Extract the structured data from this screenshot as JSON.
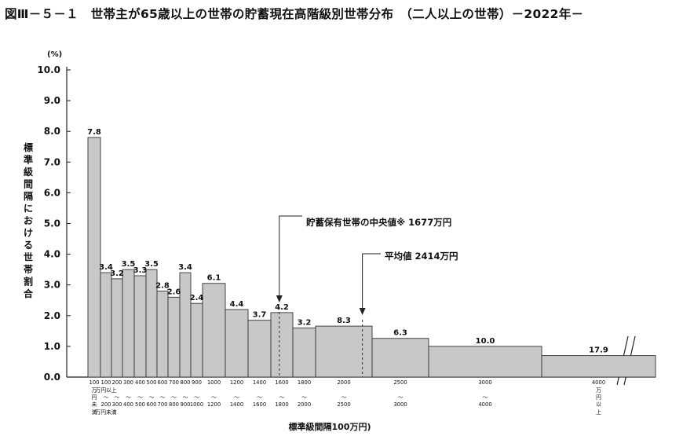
{
  "title": "図Ⅲ－５－１　世帯主が65歳以上の世帯の貯蓄現在高階級別世帯分布　（二人以上の世帯）－2022年－",
  "chart_data": {
    "type": "bar",
    "title": "図Ⅲ－５－１　世帯主が65歳以上の世帯の貯蓄現在高階級別世帯分布　（二人以上の世帯）－2022年－",
    "ylabel": "標準級間隔における世帯割合",
    "yunit": "(%)",
    "xlabel": "標準級間隔100万円)",
    "ylim": [
      0,
      10
    ],
    "yticks": [
      "0.0",
      "1.0",
      "2.0",
      "3.0",
      "4.0",
      "5.0",
      "6.0",
      "7.0",
      "8.0",
      "9.0",
      "10.0"
    ],
    "grid": false,
    "bars": [
      {
        "from": 0,
        "to": 100,
        "value": 7.8,
        "label": "7.8",
        "category": [
          "100",
          "万",
          "円",
          "未",
          "満"
        ]
      },
      {
        "from": 100,
        "to": 200,
        "value": 3.4,
        "label": "3.4",
        "category": [
          "100",
          "万円以上",
          "〜",
          "200",
          "万円未満"
        ]
      },
      {
        "from": 200,
        "to": 300,
        "value": 3.2,
        "label": "3.2",
        "category": [
          "200",
          "",
          "〜",
          "300",
          ""
        ]
      },
      {
        "from": 300,
        "to": 400,
        "value": 3.5,
        "label": "3.5",
        "category": [
          "300",
          "",
          "〜",
          "400",
          ""
        ]
      },
      {
        "from": 400,
        "to": 500,
        "value": 3.3,
        "label": "3.3",
        "category": [
          "400",
          "",
          "〜",
          "500",
          ""
        ]
      },
      {
        "from": 500,
        "to": 600,
        "value": 3.5,
        "label": "3.5",
        "category": [
          "500",
          "",
          "〜",
          "600",
          ""
        ]
      },
      {
        "from": 600,
        "to": 700,
        "value": 2.8,
        "label": "2.8",
        "category": [
          "600",
          "",
          "〜",
          "700",
          ""
        ]
      },
      {
        "from": 700,
        "to": 800,
        "value": 2.6,
        "label": "2.6",
        "category": [
          "700",
          "",
          "〜",
          "800",
          ""
        ]
      },
      {
        "from": 800,
        "to": 900,
        "value": 3.4,
        "label": "3.4",
        "category": [
          "800",
          "",
          "〜",
          "900",
          ""
        ]
      },
      {
        "from": 900,
        "to": 1000,
        "value": 2.4,
        "label": "2.4",
        "category": [
          "900",
          "",
          "〜",
          "1000",
          ""
        ]
      },
      {
        "from": 1000,
        "to": 1200,
        "value": 3.05,
        "label": "6.1",
        "category": [
          "1000",
          "",
          "〜",
          "1200",
          ""
        ]
      },
      {
        "from": 1200,
        "to": 1400,
        "value": 2.2,
        "label": "4.4",
        "category": [
          "1200",
          "",
          "〜",
          "1400",
          ""
        ]
      },
      {
        "from": 1400,
        "to": 1600,
        "value": 1.85,
        "label": "3.7",
        "category": [
          "1400",
          "",
          "〜",
          "1600",
          ""
        ]
      },
      {
        "from": 1600,
        "to": 1800,
        "value": 2.1,
        "label": "4.2",
        "category": [
          "1600",
          "",
          "〜",
          "1800",
          ""
        ]
      },
      {
        "from": 1800,
        "to": 2000,
        "value": 1.6,
        "label": "3.2",
        "category": [
          "1800",
          "",
          "〜",
          "2000",
          ""
        ]
      },
      {
        "from": 2000,
        "to": 2500,
        "value": 1.66,
        "label": "8.3",
        "category": [
          "2000",
          "",
          "〜",
          "2500",
          ""
        ]
      },
      {
        "from": 2500,
        "to": 3000,
        "value": 1.26,
        "label": "6.3",
        "category": [
          "2500",
          "",
          "〜",
          "3000",
          ""
        ]
      },
      {
        "from": 3000,
        "to": 4000,
        "value": 1.0,
        "label": "10.0",
        "category": [
          "3000",
          "",
          "〜",
          "4000",
          ""
        ]
      },
      {
        "from": 4000,
        "to": null,
        "value": 0.7,
        "label": "17.9",
        "category": [
          "4000",
          "万",
          "円",
          "以",
          "上"
        ]
      }
    ],
    "annotations": [
      {
        "text": "貯蓄保有世帯の中央値※ 1677万円",
        "value": 1677
      },
      {
        "text": "平均値 2414万円",
        "value": 2414
      }
    ]
  }
}
